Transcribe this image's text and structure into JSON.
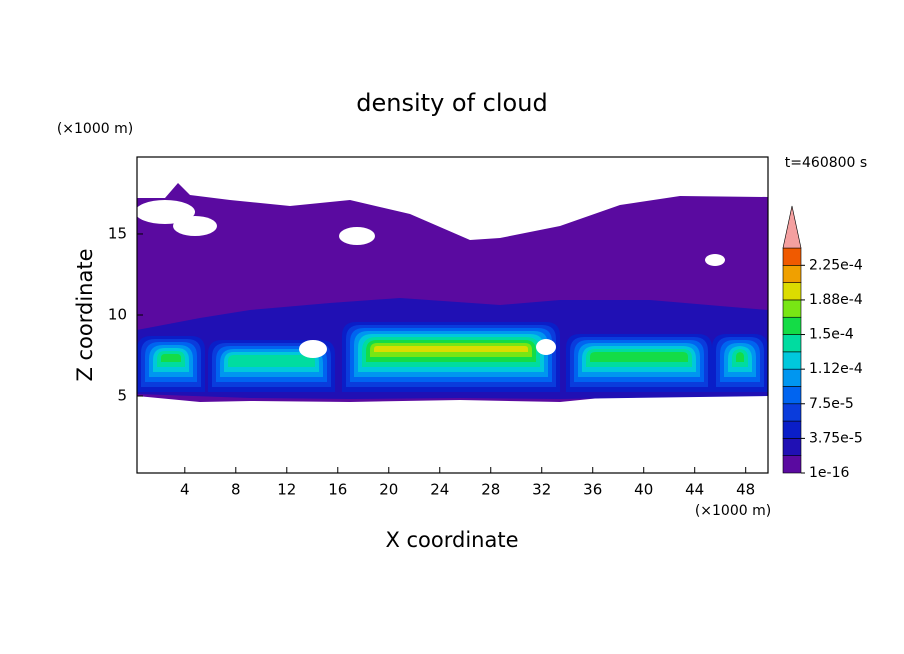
{
  "chart_data": {
    "type": "contour",
    "title": "density of cloud",
    "x_label": "X coordinate",
    "y_label": "Z coordinate",
    "x_unit": "(×1000 m)",
    "y_unit": "(×1000 m)",
    "time_label": "t=460800 s",
    "xlim": [
      0.25,
      49.75
    ],
    "xticks": [
      4,
      8,
      12,
      16,
      20,
      24,
      28,
      32,
      36,
      40,
      44,
      48
    ],
    "ylim": [
      0.25,
      19.75
    ],
    "yticks": [
      5,
      10,
      15
    ],
    "colorbar": {
      "lim": [
        1e-16,
        0.00024375
      ],
      "colors": [
        "#5a0aa0",
        "#2010b4",
        "#0a1ec8",
        "#0a3cdc",
        "#0064f0",
        "#0096f0",
        "#00c8dc",
        "#00dca0",
        "#14dc46",
        "#78e614",
        "#dcdc00",
        "#f0a000",
        "#f05a00",
        "#e61e1e"
      ],
      "extend_color": "#f4a0a0",
      "ticks": [
        1e-16,
        {
          "value": 3.75e-05,
          "label": "3.75e-5"
        },
        {
          "value": 7.5e-05,
          "label": "7.5e-5"
        },
        {
          "value": 0.0001125,
          "label": "1.12e-4"
        },
        {
          "value": 0.00015,
          "label": "1.5e-4"
        },
        {
          "value": 0.0001875,
          "label": "1.88e-4"
        },
        {
          "value": 0.000225,
          "label": "2.25e-4"
        }
      ]
    }
  }
}
